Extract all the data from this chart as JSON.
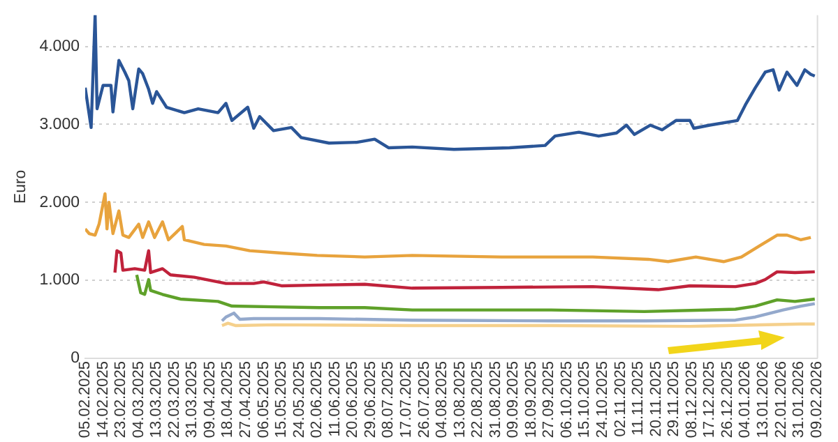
{
  "chart_data": {
    "type": "line",
    "ylabel": "Euro",
    "grid": "y",
    "legend": false,
    "xlim": [
      "2025-02-05",
      "2026-02-09"
    ],
    "xticks": [
      {
        "value": "2025-02-05",
        "label": "05.02.2025"
      },
      {
        "value": "2025-02-14",
        "label": "14.02.2025"
      },
      {
        "value": "2025-02-23",
        "label": "23.02.2025"
      },
      {
        "value": "2025-03-04",
        "label": "04.03.2025"
      },
      {
        "value": "2025-03-13",
        "label": "13.03.2025"
      },
      {
        "value": "2025-03-22",
        "label": "22.03.2025"
      },
      {
        "value": "2025-03-31",
        "label": "31.03.2025"
      },
      {
        "value": "2025-04-09",
        "label": "09.04.2025"
      },
      {
        "value": "2025-04-18",
        "label": "18.04.2025"
      },
      {
        "value": "2025-04-27",
        "label": "27.04.2025"
      },
      {
        "value": "2025-05-06",
        "label": "06.05.2025"
      },
      {
        "value": "2025-05-15",
        "label": "15.05.2025"
      },
      {
        "value": "2025-05-24",
        "label": "24.05.2025"
      },
      {
        "value": "2025-06-02",
        "label": "02.06.2025"
      },
      {
        "value": "2025-06-11",
        "label": "11.06.2025"
      },
      {
        "value": "2025-06-20",
        "label": "20.06.2025"
      },
      {
        "value": "2025-06-29",
        "label": "29.06.2025"
      },
      {
        "value": "2025-07-08",
        "label": "08.07.2025"
      },
      {
        "value": "2025-07-17",
        "label": "17.07.2025"
      },
      {
        "value": "2025-07-26",
        "label": "26.07.2025"
      },
      {
        "value": "2025-08-04",
        "label": "04.08.2025"
      },
      {
        "value": "2025-08-13",
        "label": "13.08.2025"
      },
      {
        "value": "2025-08-22",
        "label": "22.08.2025"
      },
      {
        "value": "2025-08-31",
        "label": "31.08.2025"
      },
      {
        "value": "2025-09-09",
        "label": "09.09.2025"
      },
      {
        "value": "2025-09-18",
        "label": "18.09.2025"
      },
      {
        "value": "2025-09-27",
        "label": "27.09.2025"
      },
      {
        "value": "2025-10-06",
        "label": "06.10.2025"
      },
      {
        "value": "2025-10-15",
        "label": "15.10.2025"
      },
      {
        "value": "2025-10-24",
        "label": "24.10.2025"
      },
      {
        "value": "2025-11-02",
        "label": "02.11.2025"
      },
      {
        "value": "2025-11-11",
        "label": "11.11.2025"
      },
      {
        "value": "2025-11-20",
        "label": "20.11.2025"
      },
      {
        "value": "2025-11-29",
        "label": "29.11.2025"
      },
      {
        "value": "2025-12-08",
        "label": "08.12.2025"
      },
      {
        "value": "2025-12-17",
        "label": "17.12.2025"
      },
      {
        "value": "2025-12-26",
        "label": "26.12.2025"
      },
      {
        "value": "2026-01-04",
        "label": "04.01.2026"
      },
      {
        "value": "2026-01-13",
        "label": "13.01.2026"
      },
      {
        "value": "2026-01-22",
        "label": "22.01.2026"
      },
      {
        "value": "2026-01-31",
        "label": "31.01.2026"
      },
      {
        "value": "2026-02-09",
        "label": "09.02.2026"
      }
    ],
    "ylim": [
      0,
      4400
    ],
    "yticks": [
      0,
      {
        "value": 1000,
        "label": "1.000"
      },
      {
        "value": 2000,
        "label": "2.000"
      },
      {
        "value": 3000,
        "label": "3.000"
      },
      {
        "value": 4000,
        "label": "4.000"
      }
    ],
    "series": [
      {
        "color": "#2a5597",
        "x": [
          "2025-02-05",
          "2025-02-08",
          "2025-02-10",
          "2025-02-11",
          "2025-02-14",
          "2025-02-18",
          "2025-02-19",
          "2025-02-22",
          "2025-02-25",
          "2025-02-27",
          "2025-03-01",
          "2025-03-04",
          "2025-03-06",
          "2025-03-09",
          "2025-03-11",
          "2025-03-13",
          "2025-03-18",
          "2025-03-27",
          "2025-04-03",
          "2025-04-13",
          "2025-04-17",
          "2025-04-20",
          "2025-04-28",
          "2025-05-01",
          "2025-05-04",
          "2025-05-11",
          "2025-05-20",
          "2025-05-25",
          "2025-06-08",
          "2025-06-22",
          "2025-07-01",
          "2025-07-08",
          "2025-07-20",
          "2025-08-10",
          "2025-09-07",
          "2025-09-25",
          "2025-09-30",
          "2025-10-12",
          "2025-10-22",
          "2025-10-31",
          "2025-11-05",
          "2025-11-09",
          "2025-11-17",
          "2025-11-23",
          "2025-11-30",
          "2025-12-07",
          "2025-12-09",
          "2025-12-17",
          "2025-12-31",
          "2026-01-04",
          "2026-01-09",
          "2026-01-14",
          "2026-01-18",
          "2026-01-21",
          "2026-01-25",
          "2026-01-30",
          "2026-02-03",
          "2026-02-06",
          "2026-02-08"
        ],
        "values": [
          3470,
          2960,
          4400,
          3200,
          3500,
          3500,
          3160,
          3820,
          3670,
          3560,
          3200,
          3710,
          3650,
          3450,
          3270,
          3420,
          3220,
          3150,
          3200,
          3150,
          3270,
          3050,
          3220,
          2950,
          3100,
          2920,
          2960,
          2830,
          2760,
          2770,
          2810,
          2700,
          2710,
          2680,
          2700,
          2730,
          2850,
          2900,
          2850,
          2890,
          2990,
          2870,
          2990,
          2930,
          3050,
          3050,
          2950,
          2990,
          3050,
          3250,
          3470,
          3670,
          3700,
          3440,
          3670,
          3500,
          3700,
          3640,
          3620
        ]
      },
      {
        "color": "#e8a33d",
        "x": [
          "2025-02-05",
          "2025-02-07",
          "2025-02-10",
          "2025-02-12",
          "2025-02-15",
          "2025-02-16",
          "2025-02-17",
          "2025-02-19",
          "2025-02-22",
          "2025-02-24",
          "2025-02-27",
          "2025-03-04",
          "2025-03-06",
          "2025-03-09",
          "2025-03-12",
          "2025-03-16",
          "2025-03-19",
          "2025-03-26",
          "2025-03-27",
          "2025-04-06",
          "2025-04-17",
          "2025-04-29",
          "2025-05-15",
          "2025-06-02",
          "2025-06-26",
          "2025-07-20",
          "2025-09-03",
          "2025-10-19",
          "2025-11-16",
          "2025-11-26",
          "2025-12-10",
          "2025-12-24",
          "2026-01-02",
          "2026-01-11",
          "2026-01-20",
          "2026-01-25",
          "2026-02-01",
          "2026-02-06"
        ],
        "values": [
          1660,
          1600,
          1580,
          1720,
          2110,
          1660,
          2000,
          1600,
          1890,
          1580,
          1550,
          1720,
          1550,
          1750,
          1550,
          1750,
          1520,
          1690,
          1520,
          1460,
          1440,
          1380,
          1350,
          1320,
          1300,
          1320,
          1300,
          1300,
          1270,
          1240,
          1300,
          1240,
          1300,
          1440,
          1580,
          1580,
          1520,
          1550
        ]
      },
      {
        "color": "#c0223b",
        "x": [
          "2025-02-20",
          "2025-02-21",
          "2025-02-23",
          "2025-02-24",
          "2025-03-02",
          "2025-03-07",
          "2025-03-09",
          "2025-03-10",
          "2025-03-16",
          "2025-03-20",
          "2025-04-01",
          "2025-04-17",
          "2025-05-01",
          "2025-05-06",
          "2025-05-15",
          "2025-06-03",
          "2025-06-26",
          "2025-07-20",
          "2025-09-03",
          "2025-10-19",
          "2025-11-21",
          "2025-12-07",
          "2025-12-30",
          "2026-01-09",
          "2026-01-14",
          "2026-01-20",
          "2026-01-29",
          "2026-02-08"
        ],
        "values": [
          1100,
          1380,
          1350,
          1130,
          1150,
          1130,
          1380,
          1100,
          1150,
          1070,
          1040,
          960,
          960,
          980,
          930,
          940,
          950,
          900,
          910,
          920,
          880,
          930,
          920,
          960,
          1010,
          1110,
          1100,
          1110
        ]
      },
      {
        "color": "#5fa12a",
        "x": [
          "2025-03-03",
          "2025-03-05",
          "2025-03-07",
          "2025-03-09",
          "2025-03-10",
          "2025-03-16",
          "2025-03-25",
          "2025-04-13",
          "2025-04-20",
          "2025-05-11",
          "2025-06-03",
          "2025-06-26",
          "2025-07-20",
          "2025-09-28",
          "2025-11-14",
          "2025-12-30",
          "2026-01-09",
          "2026-01-20",
          "2026-01-29",
          "2026-02-08"
        ],
        "values": [
          1070,
          840,
          820,
          1010,
          870,
          820,
          760,
          730,
          670,
          660,
          650,
          650,
          620,
          620,
          600,
          630,
          670,
          750,
          730,
          760
        ]
      },
      {
        "color": "#94a9cc",
        "x": [
          "2025-04-15",
          "2025-04-17",
          "2025-04-21",
          "2025-04-24",
          "2025-05-01",
          "2025-06-03",
          "2025-07-20",
          "2025-09-28",
          "2025-11-14",
          "2025-12-30",
          "2026-01-09",
          "2026-01-23",
          "2026-02-01",
          "2026-02-08"
        ],
        "values": [
          480,
          530,
          580,
          500,
          510,
          510,
          490,
          480,
          480,
          490,
          530,
          620,
          670,
          700
        ]
      },
      {
        "color": "#f5d08c",
        "x": [
          "2025-04-15",
          "2025-04-18",
          "2025-04-22",
          "2025-05-11",
          "2025-07-20",
          "2025-09-28",
          "2025-12-07",
          "2026-02-01",
          "2026-02-08"
        ],
        "values": [
          420,
          450,
          420,
          430,
          420,
          420,
          410,
          440,
          440
        ]
      }
    ]
  }
}
